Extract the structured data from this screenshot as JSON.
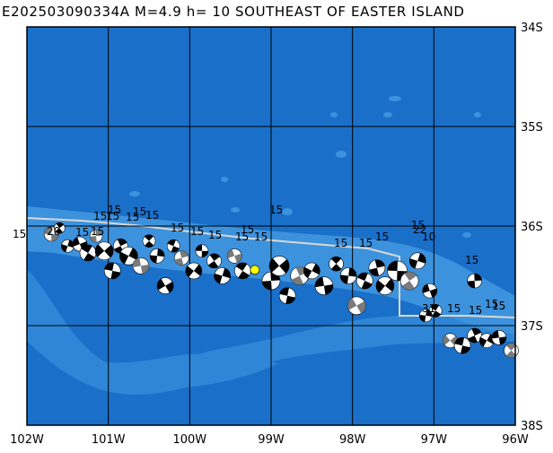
{
  "title": "E202503090334A M=4.9 h= 10 SOUTHEAST OF EASTER ISLAND",
  "lon_labels": [
    "102W",
    "101W",
    "100W",
    "99W",
    "98W",
    "97W",
    "96W"
  ],
  "lat_labels": [
    "34S",
    "35S",
    "36S",
    "37S",
    "38S"
  ],
  "lon_range": [
    -102,
    -96
  ],
  "lat_range": [
    -38,
    -34
  ],
  "colors": {
    "ocean_deep": "#1a6fc9",
    "ocean_shallow": "#2f86d6",
    "ridge": "#3d92dd",
    "grid": "#000000",
    "plate_boundary": "#d8d8d8",
    "event_marker": "#ffff00"
  },
  "event": {
    "lon": -99.2,
    "lat": -36.44
  },
  "magnitude_labels": [
    "15",
    "20",
    "15",
    "15",
    "15",
    "15",
    "15",
    "15",
    "15",
    "15",
    "15",
    "15",
    "15",
    "15",
    "15",
    "15",
    "15",
    "15",
    "22",
    "10",
    "15",
    "15",
    "31",
    "15",
    "15",
    "15",
    "15",
    "15",
    "15"
  ],
  "mechanisms": [
    {
      "lon": -101.7,
      "lat": -36.08,
      "r": 8
    },
    {
      "lon": -101.6,
      "lat": -36.02,
      "r": 6
    },
    {
      "lon": -101.5,
      "lat": -36.2,
      "r": 7
    },
    {
      "lon": -101.35,
      "lat": -36.18,
      "r": 8
    },
    {
      "lon": -101.25,
      "lat": -36.27,
      "r": 9
    },
    {
      "lon": -101.15,
      "lat": -36.1,
      "r": 7
    },
    {
      "lon": -101.05,
      "lat": -36.25,
      "r": 10
    },
    {
      "lon": -100.95,
      "lat": -36.45,
      "r": 9
    },
    {
      "lon": -100.85,
      "lat": -36.2,
      "r": 8
    },
    {
      "lon": -100.75,
      "lat": -36.3,
      "r": 10
    },
    {
      "lon": -100.6,
      "lat": -36.4,
      "r": 9
    },
    {
      "lon": -100.5,
      "lat": -36.15,
      "r": 7
    },
    {
      "lon": -100.4,
      "lat": -36.3,
      "r": 8
    },
    {
      "lon": -100.3,
      "lat": -36.6,
      "r": 9
    },
    {
      "lon": -100.2,
      "lat": -36.2,
      "r": 7
    },
    {
      "lon": -100.1,
      "lat": -36.32,
      "r": 8
    },
    {
      "lon": -99.95,
      "lat": -36.45,
      "r": 9
    },
    {
      "lon": -99.85,
      "lat": -36.25,
      "r": 7
    },
    {
      "lon": -99.7,
      "lat": -36.35,
      "r": 8
    },
    {
      "lon": -99.6,
      "lat": -36.5,
      "r": 9
    },
    {
      "lon": -99.45,
      "lat": -36.3,
      "r": 8
    },
    {
      "lon": -99.35,
      "lat": -36.45,
      "r": 9
    },
    {
      "lon": -99.0,
      "lat": -36.55,
      "r": 10
    },
    {
      "lon": -98.9,
      "lat": -36.4,
      "r": 11
    },
    {
      "lon": -98.8,
      "lat": -36.7,
      "r": 9
    },
    {
      "lon": -98.65,
      "lat": -36.5,
      "r": 10
    },
    {
      "lon": -98.5,
      "lat": -36.45,
      "r": 9
    },
    {
      "lon": -98.35,
      "lat": -36.6,
      "r": 10
    },
    {
      "lon": -98.2,
      "lat": -36.38,
      "r": 8
    },
    {
      "lon": -98.05,
      "lat": -36.5,
      "r": 9
    },
    {
      "lon": -97.95,
      "lat": -36.8,
      "r": 10
    },
    {
      "lon": -97.85,
      "lat": -36.55,
      "r": 9
    },
    {
      "lon": -97.7,
      "lat": -36.42,
      "r": 9
    },
    {
      "lon": -97.6,
      "lat": -36.6,
      "r": 10
    },
    {
      "lon": -97.45,
      "lat": -36.45,
      "r": 11
    },
    {
      "lon": -97.3,
      "lat": -36.55,
      "r": 10
    },
    {
      "lon": -97.2,
      "lat": -36.35,
      "r": 9
    },
    {
      "lon": -97.05,
      "lat": -36.65,
      "r": 8
    },
    {
      "lon": -96.98,
      "lat": -36.85,
      "r": 7
    },
    {
      "lon": -96.5,
      "lat": -36.55,
      "r": 8
    },
    {
      "lon": -96.8,
      "lat": -37.15,
      "r": 8
    },
    {
      "lon": -96.65,
      "lat": -37.2,
      "r": 9
    },
    {
      "lon": -96.5,
      "lat": -37.1,
      "r": 8
    },
    {
      "lon": -96.35,
      "lat": -37.15,
      "r": 8
    },
    {
      "lon": -96.2,
      "lat": -37.12,
      "r": 8
    },
    {
      "lon": -96.05,
      "lat": -37.25,
      "r": 8
    },
    {
      "lon": -97.1,
      "lat": -36.9,
      "r": 7
    }
  ]
}
